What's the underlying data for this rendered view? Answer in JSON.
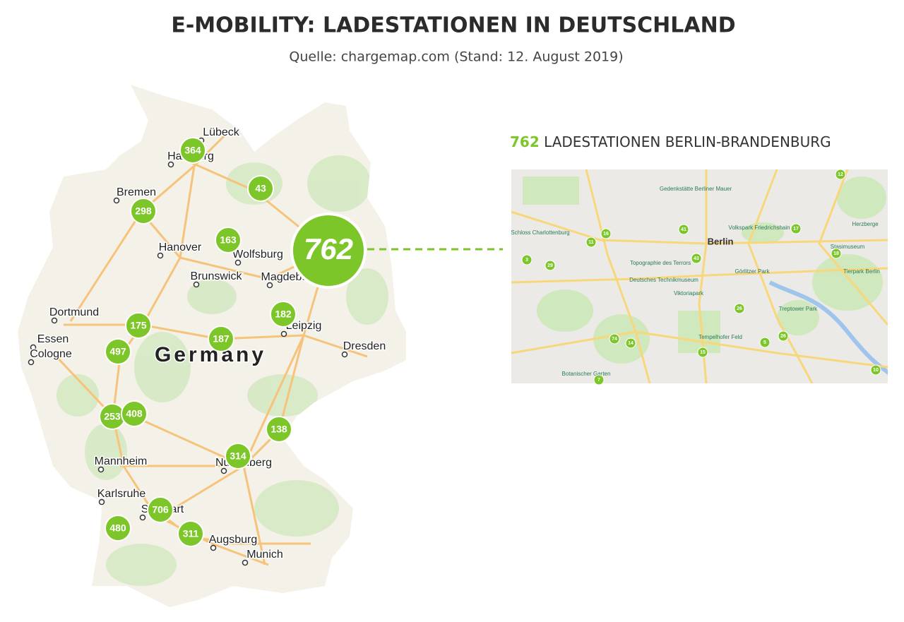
{
  "title": "E-MOBILITY: LADESTATIONEN IN DEUTSCHLAND",
  "subtitle": "Quelle: chargemap.com (Stand: 12. August 2019)",
  "map": {
    "country_label": "Germany",
    "cities": [
      "Lübeck",
      "Hamburg",
      "Bremen",
      "Hanover",
      "Wolfsburg",
      "Brunswick",
      "Magdeburg",
      "Dortmund",
      "Essen",
      "Cologne",
      "Leipzig",
      "Dresden",
      "Mannheim",
      "Karlsruhe",
      "Stuttgart",
      "Nuremberg",
      "Augsburg",
      "Munich"
    ],
    "clusters": [
      364,
      43,
      298,
      163,
      762,
      182,
      175,
      187,
      497,
      253,
      408,
      138,
      314,
      706,
      480,
      311
    ]
  },
  "inset": {
    "count": 762,
    "heading": "LADESTATIONEN BERLIN-BRANDENBURG",
    "places": [
      "Berlin",
      "Gedenkstätte Berliner Mauer",
      "Volkspark Friedrichshain",
      "Schloss Charlottenburg",
      "Topographie des Terrors",
      "Deutsches Technikmuseum",
      "Görlitzer Park",
      "Viktoriapark",
      "Tempelhofer Feld",
      "Treptower Park",
      "Tierpark Berlin",
      "Stasimuseum",
      "Herzberge",
      "Botanischer Garten"
    ],
    "clusters": [
      12,
      16,
      11,
      41,
      17,
      18,
      3,
      29,
      43,
      26,
      5,
      26,
      74,
      14,
      15,
      10,
      7
    ]
  }
}
